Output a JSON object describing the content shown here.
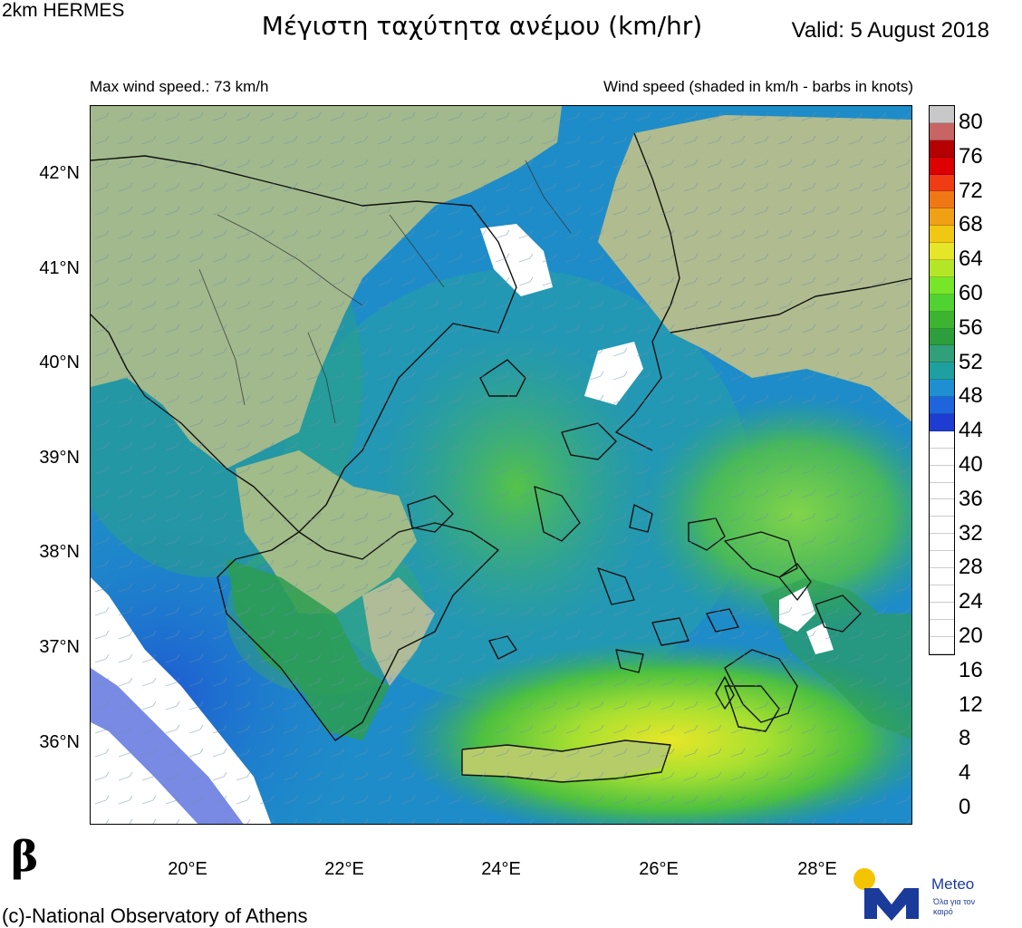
{
  "header": {
    "model_name": "2km HERMES",
    "title": "Μέγιστη ταχύτητα ανέμου (km/hr)",
    "valid": "Valid: 5 August 2018",
    "max_wind": "Max wind speed.: 73 km/h",
    "legend_note": "Wind speed (shaded in km/h - barbs in knots)"
  },
  "axes": {
    "lat_labels": [
      "42°N",
      "41°N",
      "40°N",
      "39°N",
      "38°N",
      "37°N",
      "36°N"
    ],
    "lon_labels": [
      "20°E",
      "22°E",
      "24°E",
      "26°E",
      "28°E"
    ]
  },
  "colorbar": {
    "labels": [
      "80",
      "76",
      "72",
      "68",
      "64",
      "60",
      "56",
      "52",
      "48",
      "44",
      "40",
      "36",
      "32",
      "28",
      "24",
      "20",
      "16",
      "12",
      "8",
      "4",
      "0"
    ],
    "colors": [
      "#c8c8c8",
      "#c86464",
      "#b40000",
      "#dc0000",
      "#f03c14",
      "#f07814",
      "#f0a014",
      "#f0c814",
      "#e6e628",
      "#b4e628",
      "#78e628",
      "#50d232",
      "#3cb432",
      "#2c9e3c",
      "#30a07a",
      "#1ea0a0",
      "#1e90d2",
      "#1e64dc",
      "#1e3cd2",
      "#ffffff",
      "#ffffff",
      "#ffffff",
      "#ffffff",
      "#ffffff",
      "#ffffff",
      "#ffffff",
      "#ffffff",
      "#ffffff",
      "#ffffff",
      "#ffffff",
      "#ffffff",
      "#ffffff"
    ]
  },
  "panel_letter": "β",
  "credit": "(c)-National Observatory of Athens",
  "logo": {
    "name": "Meteo",
    "tagline": "Όλα για τον καιρό",
    "icon": "meteo-m-sun-logo"
  }
}
